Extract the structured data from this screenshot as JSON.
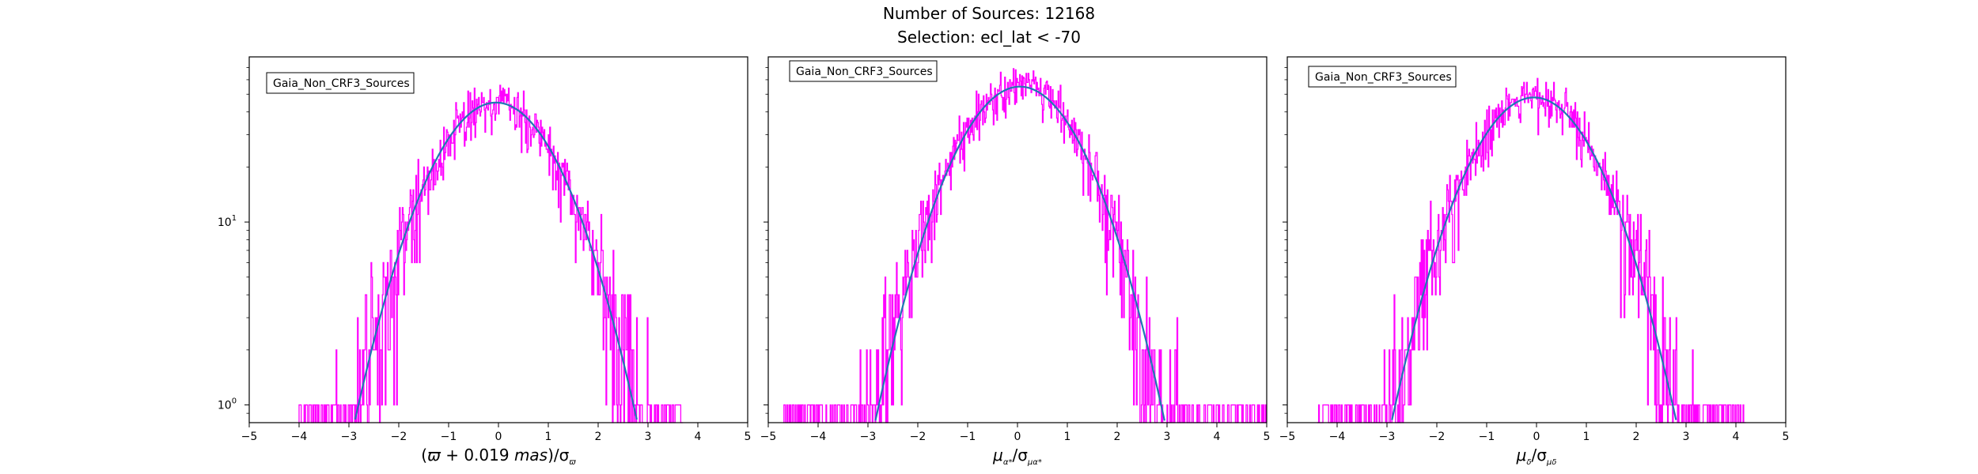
{
  "figure": {
    "title_line1": "Number of Sources: 12168",
    "title_line2": "Selection: ecl_lat < -70"
  },
  "colors": {
    "histogram": "#ff00ff",
    "fit": "#1f77b4",
    "axes": "#000000",
    "background": "#ffffff"
  },
  "chart_data": [
    {
      "type": "histogram",
      "panel": 1,
      "legend": "Gaia_Non_CRF3_Sources",
      "legend_position": "upper-left",
      "xlabel_parts": {
        "paren_open": "(",
        "symbol": "ϖ",
        "plus": " + 0.019 ",
        "unit": "mas",
        "paren_close": ")/σ",
        "sub": "ϖ"
      },
      "xlim": [
        -5,
        5
      ],
      "ylim": [
        0.8,
        80
      ],
      "yscale": "log",
      "x_ticks": [
        "−5",
        "−4",
        "−3",
        "−2",
        "−1",
        "0",
        "1",
        "2",
        "3",
        "4",
        "5"
      ],
      "y_tick_labels": [
        {
          "base": "10",
          "exp": "0",
          "value": 1
        },
        {
          "base": "10",
          "exp": "1",
          "value": 10
        }
      ],
      "grid": false,
      "fit": {
        "type": "gaussian",
        "amplitude": 45,
        "mean": -0.05,
        "sigma": 1.0
      },
      "histogram_extent": [
        -4.0,
        3.7
      ]
    },
    {
      "type": "histogram",
      "panel": 2,
      "legend": "Gaia_Non_CRF3_Sources",
      "legend_position": "upper-left",
      "xlabel_parts": {
        "main": "μ",
        "sub1": "α*",
        "slash": "/σ",
        "sub2": "μα*"
      },
      "xlim": [
        -5,
        5
      ],
      "ylim": [
        0.8,
        80
      ],
      "yscale": "log",
      "x_ticks": [
        "−5",
        "−4",
        "−3",
        "−2",
        "−1",
        "0",
        "1",
        "2",
        "3",
        "4",
        "5"
      ],
      "y_tick_labels": [],
      "grid": false,
      "fit": {
        "type": "gaussian",
        "amplitude": 55,
        "mean": 0.05,
        "sigma": 1.0
      },
      "histogram_extent": [
        -4.7,
        5.0
      ]
    },
    {
      "type": "histogram",
      "panel": 3,
      "legend": "Gaia_Non_CRF3_Sources",
      "legend_position": "upper-left",
      "xlabel_parts": {
        "main": "μ",
        "sub1": "δ",
        "slash": "/σ",
        "sub2": "μδ"
      },
      "xlim": [
        -5,
        5
      ],
      "ylim": [
        0.8,
        80
      ],
      "yscale": "log",
      "x_ticks": [
        "−5",
        "−4",
        "−3",
        "−2",
        "−1",
        "0",
        "1",
        "2",
        "3",
        "4",
        "5"
      ],
      "y_tick_labels": [],
      "grid": false,
      "fit": {
        "type": "gaussian",
        "amplitude": 48,
        "mean": -0.05,
        "sigma": 1.0
      },
      "histogram_extent": [
        -4.4,
        4.2
      ]
    }
  ]
}
